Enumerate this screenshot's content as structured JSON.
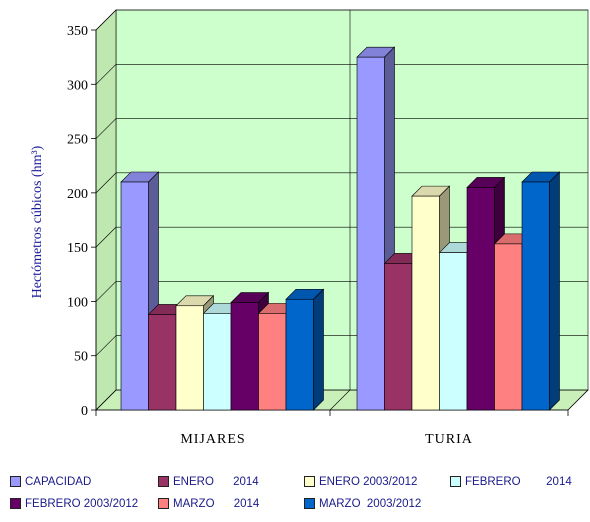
{
  "chart_data": {
    "type": "bar",
    "categories": [
      "MIJARES",
      "TURIA"
    ],
    "ylabel": "Hectómetros cúbicos (hm³)",
    "ylim": [
      0,
      350
    ],
    "yticks": [
      0,
      50,
      100,
      150,
      200,
      250,
      300,
      350
    ],
    "grid": true,
    "legend_position": "bottom",
    "series": [
      {
        "name": "CAPACIDAD",
        "color": "#9999ff",
        "values": [
          210,
          325
        ]
      },
      {
        "name": "ENERO      2014",
        "color": "#993366",
        "values": [
          88,
          135
        ]
      },
      {
        "name": "ENERO 2003/2012",
        "color": "#ffffcc",
        "values": [
          96,
          197
        ]
      },
      {
        "name": "FEBRERO        2014",
        "color": "#ccffff",
        "values": [
          89,
          145
        ]
      },
      {
        "name": "FEBRERO 2003/2012",
        "color": "#660066",
        "values": [
          99,
          205
        ]
      },
      {
        "name": "MARZO      2014",
        "color": "#ff8080",
        "values": [
          89,
          153
        ]
      },
      {
        "name": "MARZO  2003/2012",
        "color": "#0066cc",
        "values": [
          102,
          210
        ]
      }
    ]
  }
}
